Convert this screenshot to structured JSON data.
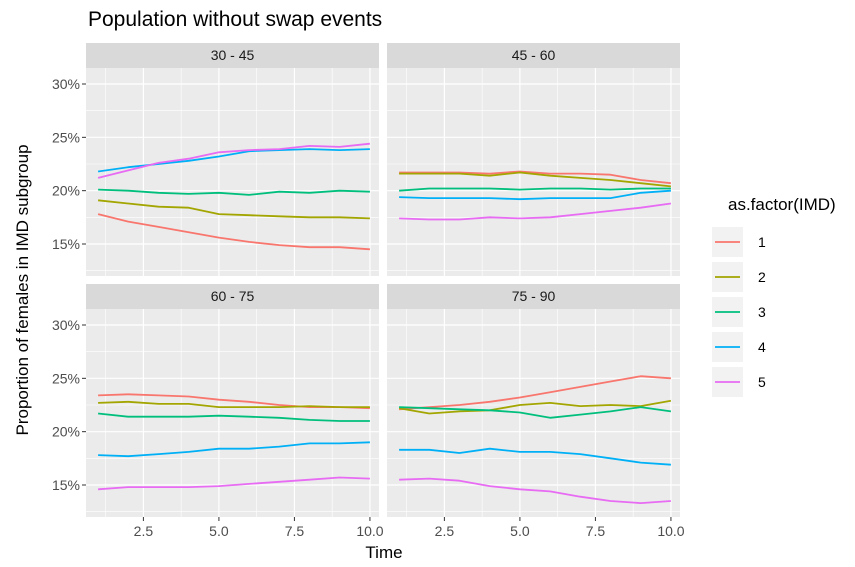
{
  "chart_data": {
    "type": "line",
    "title": "Population without swap events",
    "xlabel": "Time",
    "ylabel": "Proportion of females in IMD subgroup",
    "xlim": [
      0.6,
      10.3
    ],
    "ylim": [
      12.0,
      31.5
    ],
    "x_ticks": [
      2.5,
      5.0,
      7.5,
      10.0
    ],
    "x_tick_labels": [
      "2.5",
      "5.0",
      "7.5",
      "10.0"
    ],
    "y_ticks": [
      15,
      20,
      25,
      30
    ],
    "y_tick_labels": [
      "15%",
      "20%",
      "25%",
      "30%"
    ],
    "legend": {
      "title": "as.factor(IMD)",
      "position": "right",
      "entries": [
        {
          "label": "1",
          "color": "#F8766D"
        },
        {
          "label": "2",
          "color": "#A3A500"
        },
        {
          "label": "3",
          "color": "#00BF7D"
        },
        {
          "label": "4",
          "color": "#00B0F6"
        },
        {
          "label": "5",
          "color": "#E76BF3"
        }
      ]
    },
    "x": [
      1,
      2,
      3,
      4,
      5,
      6,
      7,
      8,
      9,
      10
    ],
    "facets": [
      {
        "label": "30 - 45",
        "series": [
          {
            "name": "1",
            "values": [
              17.8,
              17.1,
              16.6,
              16.1,
              15.6,
              15.2,
              14.9,
              14.7,
              14.7,
              14.5
            ]
          },
          {
            "name": "2",
            "values": [
              19.1,
              18.8,
              18.5,
              18.4,
              17.8,
              17.7,
              17.6,
              17.5,
              17.5,
              17.4
            ]
          },
          {
            "name": "3",
            "values": [
              20.1,
              20.0,
              19.8,
              19.7,
              19.8,
              19.6,
              19.9,
              19.8,
              20.0,
              19.9
            ]
          },
          {
            "name": "4",
            "values": [
              21.8,
              22.2,
              22.5,
              22.8,
              23.2,
              23.7,
              23.8,
              23.9,
              23.8,
              23.9
            ]
          },
          {
            "name": "5",
            "values": [
              21.2,
              21.9,
              22.6,
              23.0,
              23.6,
              23.8,
              23.9,
              24.2,
              24.1,
              24.4
            ]
          }
        ]
      },
      {
        "label": "45 - 60",
        "series": [
          {
            "name": "1",
            "values": [
              21.7,
              21.7,
              21.7,
              21.6,
              21.8,
              21.6,
              21.6,
              21.5,
              21.0,
              20.7
            ]
          },
          {
            "name": "2",
            "values": [
              21.6,
              21.6,
              21.6,
              21.4,
              21.7,
              21.4,
              21.2,
              21.0,
              20.7,
              20.4
            ]
          },
          {
            "name": "3",
            "values": [
              20.0,
              20.2,
              20.2,
              20.2,
              20.1,
              20.2,
              20.2,
              20.1,
              20.2,
              20.2
            ]
          },
          {
            "name": "4",
            "values": [
              19.4,
              19.3,
              19.3,
              19.3,
              19.2,
              19.3,
              19.3,
              19.3,
              19.8,
              20.0
            ]
          },
          {
            "name": "5",
            "values": [
              17.4,
              17.3,
              17.3,
              17.5,
              17.4,
              17.5,
              17.8,
              18.1,
              18.4,
              18.8
            ]
          }
        ]
      },
      {
        "label": "60 - 75",
        "series": [
          {
            "name": "1",
            "values": [
              23.4,
              23.5,
              23.4,
              23.3,
              23.0,
              22.8,
              22.5,
              22.3,
              22.3,
              22.2
            ]
          },
          {
            "name": "2",
            "values": [
              22.7,
              22.8,
              22.6,
              22.6,
              22.3,
              22.3,
              22.3,
              22.4,
              22.3,
              22.3
            ]
          },
          {
            "name": "3",
            "values": [
              21.7,
              21.4,
              21.4,
              21.4,
              21.5,
              21.4,
              21.3,
              21.1,
              21.0,
              21.0
            ]
          },
          {
            "name": "4",
            "values": [
              17.8,
              17.7,
              17.9,
              18.1,
              18.4,
              18.4,
              18.6,
              18.9,
              18.9,
              19.0
            ]
          },
          {
            "name": "5",
            "values": [
              14.6,
              14.8,
              14.8,
              14.8,
              14.9,
              15.1,
              15.3,
              15.5,
              15.7,
              15.6
            ]
          }
        ]
      },
      {
        "label": "75 - 90",
        "series": [
          {
            "name": "1",
            "values": [
              22.1,
              22.3,
              22.5,
              22.8,
              23.2,
              23.7,
              24.2,
              24.7,
              25.2,
              25.0
            ]
          },
          {
            "name": "2",
            "values": [
              22.2,
              21.7,
              21.9,
              22.0,
              22.5,
              22.7,
              22.4,
              22.5,
              22.4,
              22.9
            ]
          },
          {
            "name": "3",
            "values": [
              22.3,
              22.2,
              22.1,
              22.0,
              21.8,
              21.3,
              21.6,
              21.9,
              22.3,
              21.9
            ]
          },
          {
            "name": "4",
            "values": [
              18.3,
              18.3,
              18.0,
              18.4,
              18.1,
              18.1,
              17.9,
              17.5,
              17.1,
              16.9
            ]
          },
          {
            "name": "5",
            "values": [
              15.5,
              15.6,
              15.4,
              14.9,
              14.6,
              14.4,
              13.9,
              13.5,
              13.3,
              13.5
            ]
          }
        ]
      }
    ]
  }
}
